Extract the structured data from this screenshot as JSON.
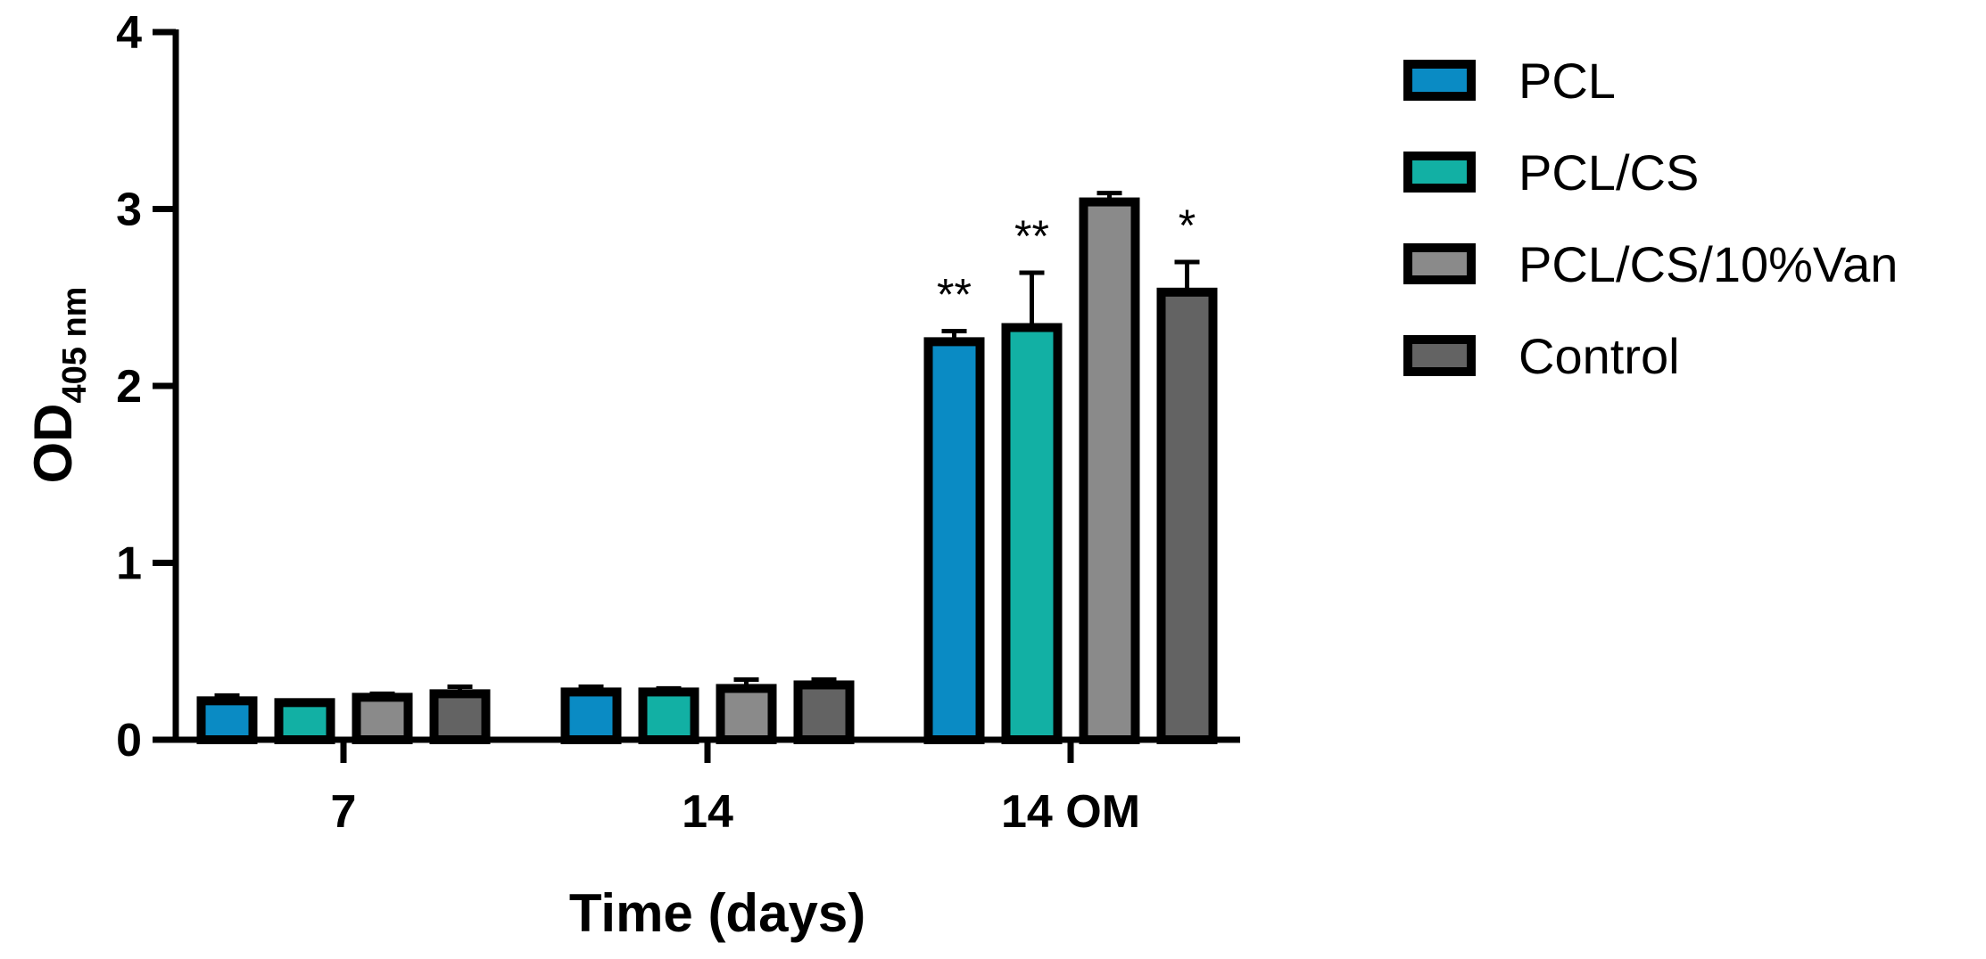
{
  "chart_data": {
    "type": "bar",
    "categories": [
      "7",
      "14",
      "14 OM"
    ],
    "series": [
      {
        "name": "PCL",
        "color": "#0a8bc4",
        "values": [
          0.22,
          0.27,
          2.25
        ],
        "errors": [
          0.03,
          0.03,
          0.06
        ]
      },
      {
        "name": "PCL/CS",
        "color": "#12b0a4",
        "values": [
          0.21,
          0.27,
          2.33
        ],
        "errors": [
          0.01,
          0.02,
          0.31
        ]
      },
      {
        "name": "PCL/CS/10%Van",
        "color": "#8a8a8a",
        "values": [
          0.24,
          0.29,
          3.04
        ],
        "errors": [
          0.02,
          0.05,
          0.05
        ]
      },
      {
        "name": "Control",
        "color": "#636363",
        "values": [
          0.26,
          0.31,
          2.53
        ],
        "errors": [
          0.04,
          0.03,
          0.17
        ]
      }
    ],
    "annotations": [
      {
        "category": "14 OM",
        "series": "PCL",
        "text": "**"
      },
      {
        "category": "14 OM",
        "series": "PCL/CS",
        "text": "**"
      },
      {
        "category": "14 OM",
        "series": "Control",
        "text": "*"
      }
    ],
    "xlabel": "Time (days)",
    "ylabel": "OD",
    "ylabel_subscript": "405 nm",
    "ylim": [
      0,
      4
    ],
    "yticks": [
      "0",
      "1",
      "2",
      "3",
      "4"
    ],
    "grid": false,
    "legend_position": "right"
  }
}
